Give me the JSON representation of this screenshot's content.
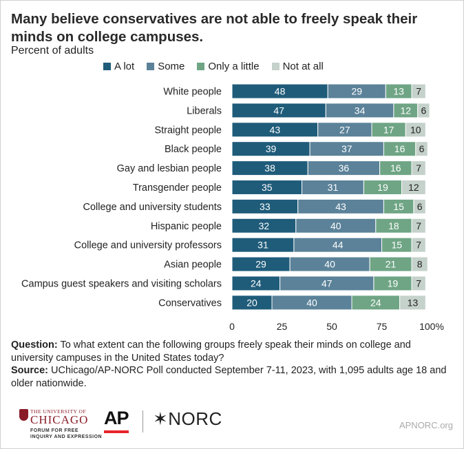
{
  "title": "Many believe conservatives are not able to freely speak their minds on college campuses.",
  "subtitle": "Percent of adults",
  "legend": [
    {
      "label": "A lot",
      "color": "#1f5c7a"
    },
    {
      "label": "Some",
      "color": "#5b8299"
    },
    {
      "label": "Only a little",
      "color": "#6fa585"
    },
    {
      "label": "Not at all",
      "color": "#c5d1cb"
    }
  ],
  "chart_data": {
    "type": "bar",
    "orientation": "horizontal",
    "stacked": true,
    "categories": [
      "White people",
      "Liberals",
      "Straight people",
      "Black people",
      "Gay and lesbian people",
      "Transgender people",
      "College and university students",
      "Hispanic people",
      "College and university professors",
      "Asian people",
      "Campus guest speakers and visiting scholars",
      "Conservatives"
    ],
    "series": [
      {
        "name": "A lot",
        "color": "#1f5c7a",
        "values": [
          48,
          47,
          43,
          39,
          38,
          35,
          33,
          32,
          31,
          29,
          24,
          20
        ]
      },
      {
        "name": "Some",
        "color": "#5b8299",
        "values": [
          29,
          34,
          27,
          37,
          36,
          31,
          43,
          40,
          44,
          40,
          47,
          40
        ]
      },
      {
        "name": "Only a little",
        "color": "#6fa585",
        "values": [
          13,
          12,
          17,
          16,
          16,
          19,
          15,
          18,
          15,
          21,
          19,
          24
        ]
      },
      {
        "name": "Not at all",
        "color": "#c5d1cb",
        "values": [
          7,
          6,
          10,
          6,
          7,
          12,
          6,
          7,
          7,
          8,
          7,
          13
        ]
      }
    ],
    "xlim": [
      0,
      100
    ],
    "xticks": [
      "0",
      "25",
      "50",
      "75",
      "100%"
    ],
    "legend_position": "top"
  },
  "footnote": {
    "question_label": "Question:",
    "question_text": " To what extent can the following groups freely speak their minds on college and university campuses in the United States today?",
    "source_label": "Source:",
    "source_text": " UChicago/AP-NORC Poll conducted September 7-11, 2023, with 1,095 adults age 18 and older nationwide."
  },
  "logos": {
    "uchicago_line1": "THE UNIVERSITY OF",
    "uchicago_line2": "CHICAGO",
    "uchicago_line3a": "FORUM FOR FREE",
    "uchicago_line3b": "INQUIRY AND EXPRESSION",
    "ap": "AP",
    "norc": "✶NORC",
    "website": "APNORC.org"
  }
}
